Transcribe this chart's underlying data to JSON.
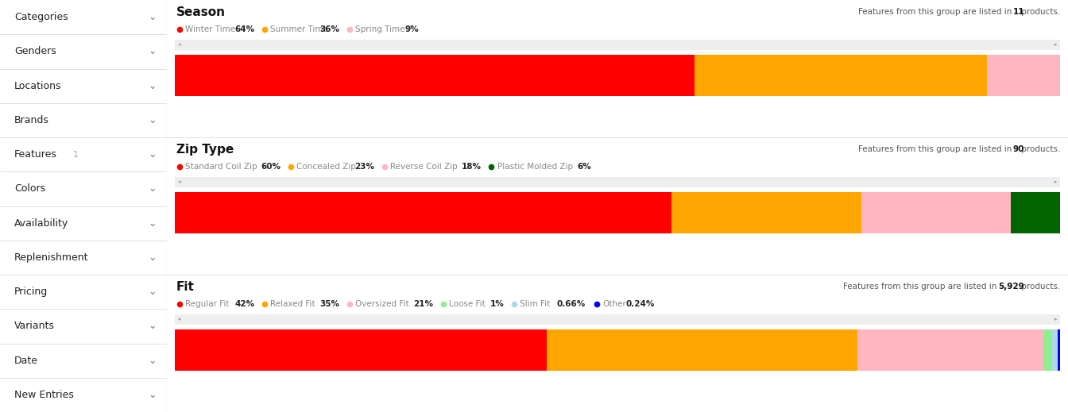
{
  "sidebar_items": [
    "Categories",
    "Genders",
    "Locations",
    "Brands",
    "Features",
    "Colors",
    "Availability",
    "Replenishment",
    "Pricing",
    "Variants",
    "Date",
    "New Entries"
  ],
  "features_badge": "1",
  "sidebar_bg": "#f7f7f7",
  "sidebar_divider": "#e0e0e0",
  "content_bg": "#ffffff",
  "sections": [
    {
      "title": "Season",
      "subtitle_prefix": "Features from this group are listed in ",
      "subtitle_bold": "11",
      "subtitle_suffix": " products.",
      "legend": [
        {
          "label": "Winter Time",
          "pct": "64%",
          "color": "#ff0000"
        },
        {
          "label": "Summer Time",
          "pct": "36%",
          "color": "#ffa500"
        },
        {
          "label": "Spring Time",
          "pct": "9%",
          "color": "#ffb6c1"
        }
      ],
      "bar": [
        {
          "value": 64,
          "color": "#ff0000"
        },
        {
          "value": 36,
          "color": "#ffa500"
        },
        {
          "value": 9,
          "color": "#ffb6c1"
        }
      ]
    },
    {
      "title": "Zip Type",
      "subtitle_prefix": "Features from this group are listed in ",
      "subtitle_bold": "90",
      "subtitle_suffix": " products.",
      "legend": [
        {
          "label": "Standard Coil Zip",
          "pct": "60%",
          "color": "#ff0000"
        },
        {
          "label": "Concealed Zip",
          "pct": "23%",
          "color": "#ffa500"
        },
        {
          "label": "Reverse Coil Zip",
          "pct": "18%",
          "color": "#ffb6c1"
        },
        {
          "label": "Plastic Molded Zip",
          "pct": "6%",
          "color": "#006400"
        }
      ],
      "bar": [
        {
          "value": 60,
          "color": "#ff0000"
        },
        {
          "value": 23,
          "color": "#ffa500"
        },
        {
          "value": 18,
          "color": "#ffb6c1"
        },
        {
          "value": 6,
          "color": "#006400"
        }
      ]
    },
    {
      "title": "Fit",
      "subtitle_prefix": "Features from this group are listed in ",
      "subtitle_bold": "5,929",
      "subtitle_suffix": " products.",
      "legend": [
        {
          "label": "Regular Fit",
          "pct": "42%",
          "color": "#ff0000"
        },
        {
          "label": "Relaxed Fit",
          "pct": "35%",
          "color": "#ffa500"
        },
        {
          "label": "Oversized Fit",
          "pct": "21%",
          "color": "#ffb6c1"
        },
        {
          "label": "Loose Fit",
          "pct": "1%",
          "color": "#90ee90"
        },
        {
          "label": "Slim Fit",
          "pct": "0.66%",
          "color": "#add8e6"
        },
        {
          "label": "Other",
          "pct": "0.24%",
          "color": "#0000ff"
        }
      ],
      "bar": [
        {
          "value": 42,
          "color": "#ff0000"
        },
        {
          "value": 35,
          "color": "#ffa500"
        },
        {
          "value": 21,
          "color": "#ffb6c1"
        },
        {
          "value": 1,
          "color": "#90ee90"
        },
        {
          "value": 0.66,
          "color": "#add8e6"
        },
        {
          "value": 0.24,
          "color": "#0000ff"
        }
      ]
    }
  ],
  "scrollbar_color": "#bbbbbb",
  "scrollbar_bg": "#eeeeee",
  "fig_width": 13.44,
  "fig_height": 5.19,
  "dpi": 100
}
